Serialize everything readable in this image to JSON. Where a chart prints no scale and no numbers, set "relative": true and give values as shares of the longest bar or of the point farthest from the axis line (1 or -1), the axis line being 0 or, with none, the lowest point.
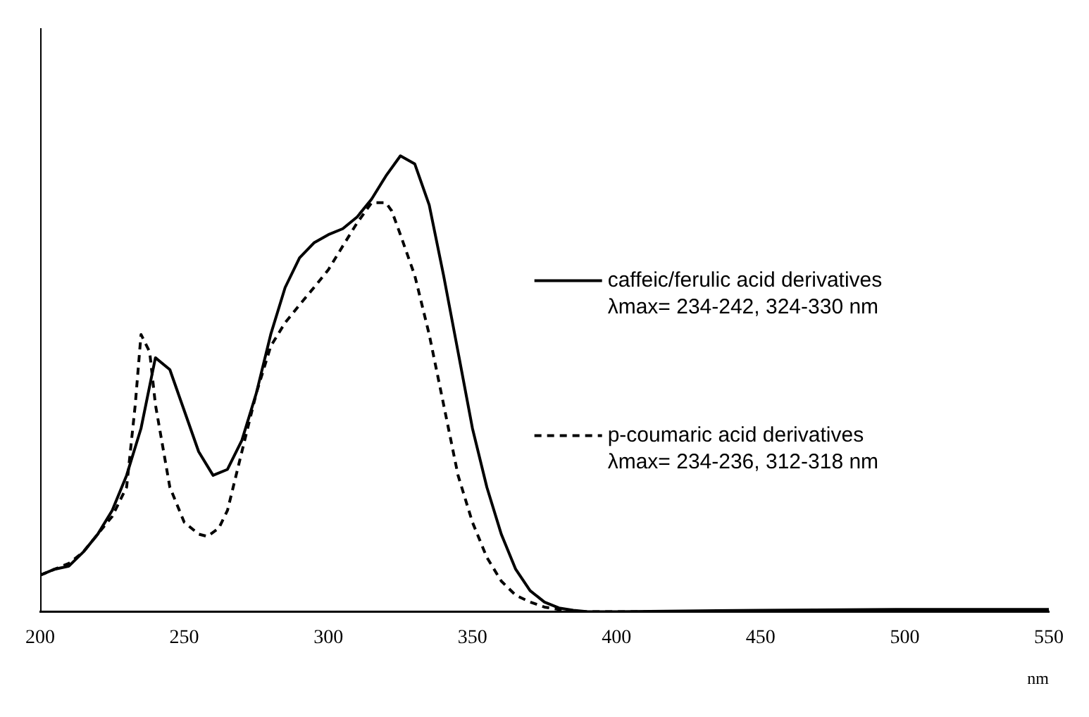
{
  "chart_data": {
    "type": "line",
    "relative": true,
    "xlabel": "nm",
    "xlim": [
      200,
      550
    ],
    "xticks": [
      200,
      250,
      300,
      350,
      400,
      450,
      500,
      550
    ],
    "grid": false,
    "legend": "right",
    "marker": "none",
    "tick_labels": "x",
    "annotations": [
      "λmax= 234-242, 324-330 nm",
      "λmax= 234-236, 312-318 nm"
    ],
    "series": [
      {
        "name": "caffeic/ferulic acid derivatives",
        "color": "#000000",
        "line_style": "solid",
        "x": [
          200,
          205,
          210,
          215,
          220,
          225,
          230,
          235,
          240,
          245,
          250,
          255,
          260,
          265,
          270,
          275,
          280,
          285,
          290,
          295,
          300,
          305,
          310,
          315,
          320,
          325,
          330,
          335,
          340,
          345,
          350,
          355,
          360,
          365,
          370,
          375,
          380,
          385,
          390,
          400,
          450,
          500,
          550
        ],
        "values": [
          0.08,
          0.093,
          0.1,
          0.131,
          0.17,
          0.222,
          0.299,
          0.402,
          0.557,
          0.531,
          0.441,
          0.351,
          0.299,
          0.312,
          0.376,
          0.479,
          0.608,
          0.711,
          0.776,
          0.809,
          0.827,
          0.84,
          0.866,
          0.905,
          0.956,
          1,
          0.982,
          0.892,
          0.737,
          0.57,
          0.402,
          0.273,
          0.17,
          0.093,
          0.046,
          0.021,
          0.008,
          0.003,
          0,
          0,
          0.003,
          0.005,
          0.005
        ]
      },
      {
        "name": "p-coumaric acid derivatives",
        "color": "#000000",
        "line_style": "dashed",
        "x": [
          200,
          205,
          210,
          215,
          220,
          225,
          230,
          233,
          235,
          238,
          240,
          245,
          250,
          255,
          258,
          262,
          265,
          270,
          275,
          280,
          285,
          290,
          295,
          300,
          305,
          310,
          315,
          320,
          322,
          325,
          330,
          335,
          340,
          345,
          350,
          355,
          360,
          365,
          370,
          375,
          380,
          385,
          400,
          550
        ],
        "values": [
          0.08,
          0.093,
          0.106,
          0.131,
          0.17,
          0.209,
          0.273,
          0.454,
          0.608,
          0.57,
          0.454,
          0.273,
          0.196,
          0.17,
          0.165,
          0.183,
          0.222,
          0.351,
          0.479,
          0.582,
          0.634,
          0.673,
          0.711,
          0.75,
          0.802,
          0.853,
          0.897,
          0.897,
          0.879,
          0.827,
          0.737,
          0.608,
          0.454,
          0.299,
          0.196,
          0.119,
          0.067,
          0.036,
          0.021,
          0.01,
          0.005,
          0,
          0,
          0
        ]
      }
    ]
  }
}
